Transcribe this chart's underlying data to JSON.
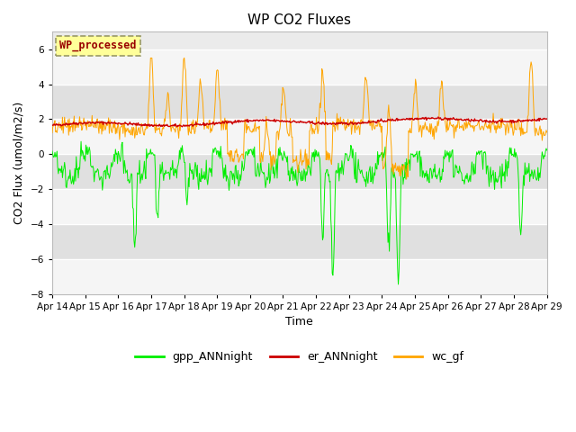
{
  "title": "WP CO2 Fluxes",
  "xlabel": "Time",
  "ylabel": "CO2 Flux (umol/m2/s)",
  "ylim": [
    -8,
    7
  ],
  "yticks": [
    -8,
    -6,
    -4,
    -2,
    0,
    2,
    4,
    6
  ],
  "xlim": [
    14,
    29
  ],
  "x_labels": [
    "Apr 14",
    "Apr 15",
    "Apr 16",
    "Apr 17",
    "Apr 18",
    "Apr 19",
    "Apr 20",
    "Apr 21",
    "Apr 22",
    "Apr 23",
    "Apr 24",
    "Apr 25",
    "Apr 26",
    "Apr 27",
    "Apr 28",
    "Apr 29"
  ],
  "figure_bg": "#ffffff",
  "plot_bg": "#ebebeb",
  "band_light": "#f5f5f5",
  "band_dark": "#e0e0e0",
  "gpp_color": "#00ee00",
  "er_color": "#cc0000",
  "wc_color": "#ffa500",
  "legend_gpp": "gpp_ANNnight",
  "legend_er": "er_ANNnight",
  "legend_wc": "wc_gf",
  "watermark_text": "WP_processed",
  "watermark_color": "#990000",
  "watermark_bg": "#ffff99",
  "seed": 42,
  "n_points": 720
}
